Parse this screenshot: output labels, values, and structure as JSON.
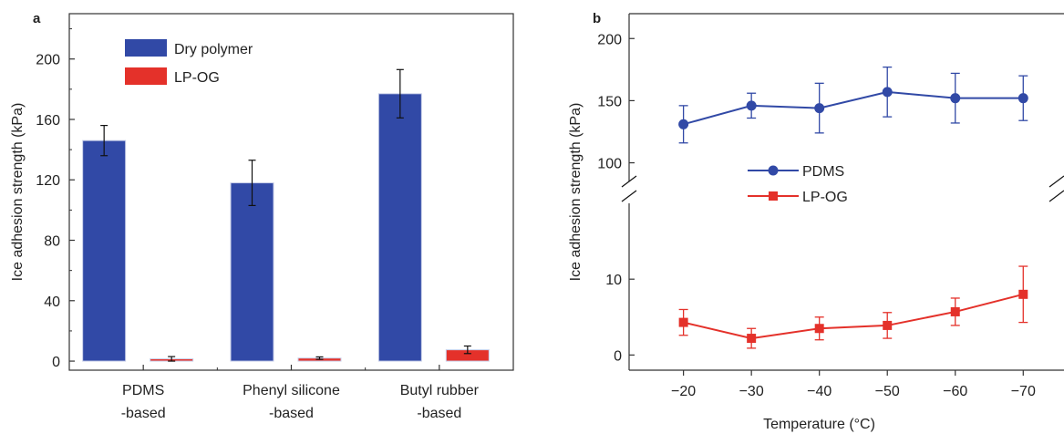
{
  "chart_data": [
    {
      "panel": "a",
      "type": "bar",
      "title": "",
      "xlabel": "",
      "ylabel": "Ice adhesion strength (kPa)",
      "categories": [
        [
          "PDMS",
          "-based"
        ],
        [
          "Phenyl silicone",
          "-based"
        ],
        [
          "Butyl rubber",
          "-based"
        ]
      ],
      "ylim": [
        -6,
        230
      ],
      "yticks": [
        0,
        40,
        80,
        120,
        160,
        200
      ],
      "grid": false,
      "legend_position": "top-left",
      "series": [
        {
          "name": "Dry polymer",
          "color": "#3149a6",
          "values": [
            146,
            118,
            177
          ],
          "errors": [
            10,
            15,
            16
          ]
        },
        {
          "name": "LP-OG",
          "color": "#e4312a",
          "values": [
            1.5,
            2,
            7.5
          ],
          "errors": [
            1.5,
            0.8,
            2.5
          ]
        }
      ]
    },
    {
      "panel": "b",
      "type": "line",
      "title": "",
      "xlabel": "Temperature (°C)",
      "ylabel": "Ice adhesion strength (kPa)",
      "x": [
        -20,
        -30,
        -40,
        -50,
        -60,
        -70
      ],
      "xticks": [
        -20,
        -30,
        -40,
        -50,
        -60,
        -70
      ],
      "xtick_labels": [
        "−20",
        "−30",
        "−40",
        "−50",
        "−60",
        "−70"
      ],
      "xlim": [
        -12,
        -76
      ],
      "broken_y_axis": true,
      "upper_ylim": [
        85,
        220
      ],
      "upper_yticks": [
        100,
        150,
        200
      ],
      "lower_ylim": [
        -2,
        20
      ],
      "lower_yticks": [
        0,
        10
      ],
      "grid": false,
      "legend_position": "center-left",
      "series": [
        {
          "name": "PDMS",
          "color": "#3149a6",
          "marker": "circle",
          "values": [
            131,
            146,
            144,
            157,
            152,
            152
          ],
          "errors": [
            15,
            10,
            20,
            20,
            20,
            18
          ]
        },
        {
          "name": "LP-OG",
          "color": "#e4312a",
          "marker": "square",
          "values": [
            4.3,
            2.2,
            3.5,
            3.9,
            5.7,
            8.0
          ],
          "errors": [
            1.7,
            1.3,
            1.5,
            1.7,
            1.8,
            3.7
          ]
        }
      ]
    }
  ]
}
